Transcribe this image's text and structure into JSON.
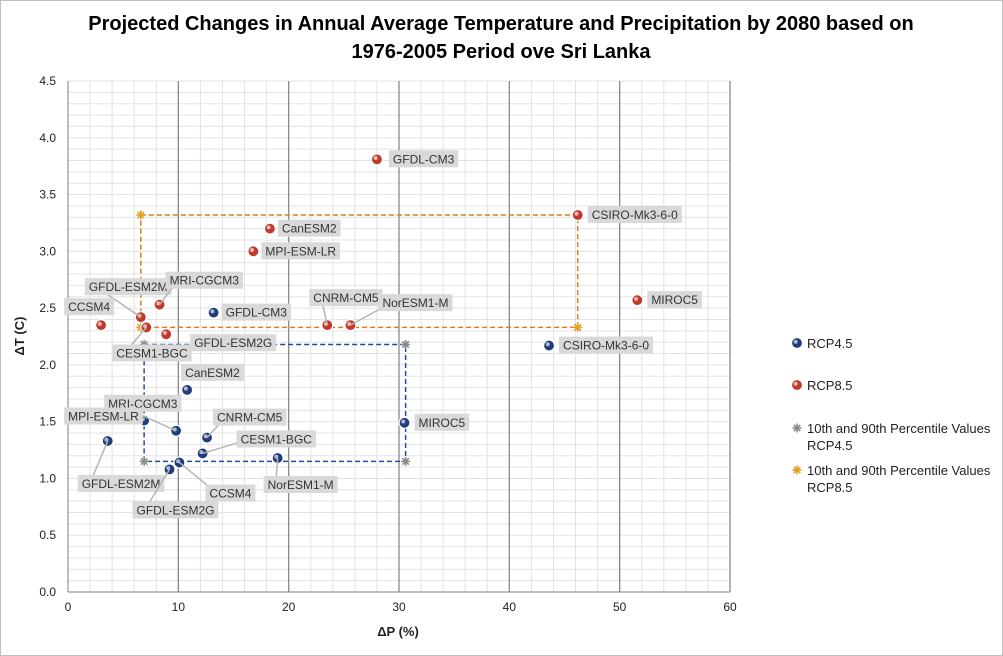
{
  "chart_data": {
    "type": "scatter",
    "title_lines": [
      "Projected Changes in Annual Average Temperature and Precipitation by 2080 based on",
      "1976-2005 Period ove Sri Lanka"
    ],
    "xlabel": "ΔP (%)",
    "ylabel": "ΔT (C)",
    "xlim": [
      0,
      60
    ],
    "ylim": [
      0,
      4.5
    ],
    "xticks": [
      0,
      10,
      20,
      30,
      40,
      50,
      60
    ],
    "yticks": [
      "0.0",
      "0.5",
      "1.0",
      "1.5",
      "2.0",
      "2.5",
      "3.0",
      "3.5",
      "4.0",
      "4.5"
    ],
    "series": [
      {
        "name": "RCP4.5",
        "color": "#1f3d7a",
        "points": [
          {
            "label": "GFDL-CM3",
            "x": 13.2,
            "y": 2.46
          },
          {
            "label": "CanESM2",
            "x": 10.8,
            "y": 1.78
          },
          {
            "label": "MRI-CGCM3",
            "x": 9.8,
            "y": 1.42
          },
          {
            "label": "MPI-ESM-LR",
            "x": 6.9,
            "y": 1.51
          },
          {
            "label": "GFDL-ESM2M",
            "x": 3.6,
            "y": 1.33
          },
          {
            "label": "CNRM-CM5",
            "x": 12.6,
            "y": 1.36
          },
          {
            "label": "CESM1-BGC",
            "x": 12.2,
            "y": 1.22
          },
          {
            "label": "CCSM4",
            "x": 10.1,
            "y": 1.14
          },
          {
            "label": "GFDL-ESM2G",
            "x": 9.2,
            "y": 1.08
          },
          {
            "label": "NorESM1-M",
            "x": 19.0,
            "y": 1.18
          },
          {
            "label": "MIROC5",
            "x": 30.5,
            "y": 1.49
          },
          {
            "label": "CSIRO-Mk3-6-0",
            "x": 43.6,
            "y": 2.17
          }
        ]
      },
      {
        "name": "RCP8.5",
        "color": "#c0392b",
        "points": [
          {
            "label": "GFDL-CM3",
            "x": 28.0,
            "y": 3.81
          },
          {
            "label": "CSIRO-Mk3-6-0",
            "x": 46.2,
            "y": 3.32
          },
          {
            "label": "CanESM2",
            "x": 18.3,
            "y": 3.2
          },
          {
            "label": "MPI-ESM-LR",
            "x": 16.8,
            "y": 3.0
          },
          {
            "label": "MIROC5",
            "x": 51.6,
            "y": 2.57
          },
          {
            "label": "GFDL-ESM2M",
            "x": 6.6,
            "y": 2.42
          },
          {
            "label": "MRI-CGCM3",
            "x": 8.3,
            "y": 2.53
          },
          {
            "label": "CCSM4",
            "x": 3.0,
            "y": 2.35
          },
          {
            "label": "CESM1-BGC",
            "x": 7.1,
            "y": 2.33
          },
          {
            "label": "GFDL-ESM2G",
            "x": 8.9,
            "y": 2.27
          },
          {
            "label": "CNRM-CM5",
            "x": 23.5,
            "y": 2.35
          },
          {
            "label": "NorESM1-M",
            "x": 25.6,
            "y": 2.35
          }
        ]
      }
    ],
    "percentiles": [
      {
        "name": "10th and 90th Percentile Values RCP4.5",
        "color": "#1f4e9a",
        "star_color": "#8c8c8c",
        "x": [
          6.9,
          30.6
        ],
        "y": [
          1.15,
          2.18
        ]
      },
      {
        "name": "10th and 90th Percentile Values RCP8.5",
        "color": "#e07b20",
        "star_color": "#e0a020",
        "x": [
          6.6,
          46.2
        ],
        "y": [
          2.33,
          3.32
        ]
      }
    ],
    "legend": [
      {
        "label": "RCP4.5",
        "kind": "dot",
        "color": "#1f3d7a"
      },
      {
        "label": "RCP8.5",
        "kind": "dot",
        "color": "#c0392b"
      },
      {
        "label_lines": [
          "10th and 90th Percentile Values",
          "RCP4.5"
        ],
        "kind": "star",
        "color": "#8c8c8c"
      },
      {
        "label_lines": [
          "10th and 90th Percentile Values",
          "RCP8.5"
        ],
        "kind": "star",
        "color": "#e0a020"
      }
    ]
  }
}
